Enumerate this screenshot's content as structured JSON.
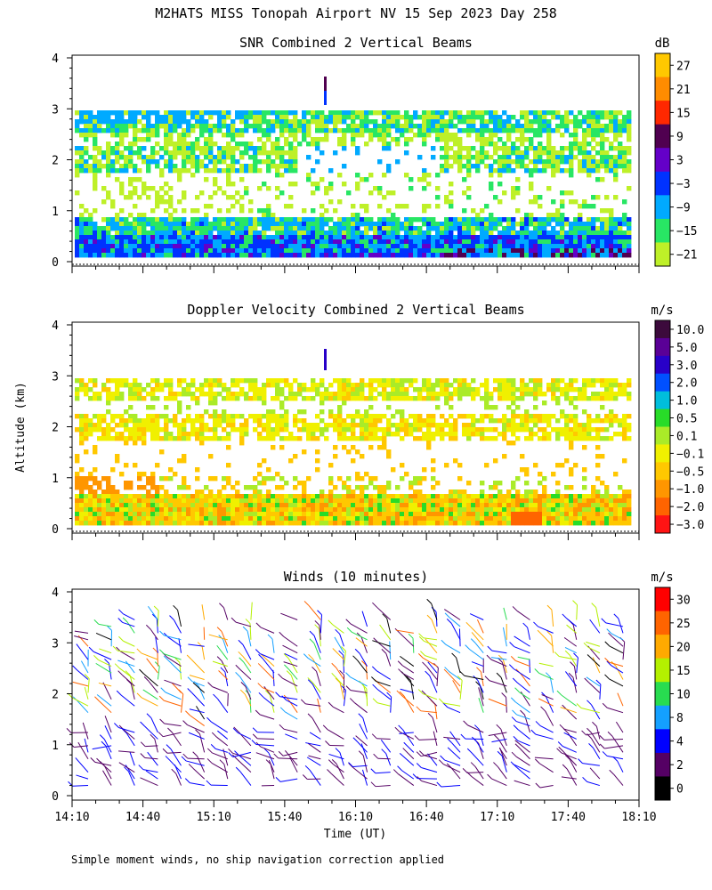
{
  "title": "M2HATS MISS Tonopah Airport NV  15 Sep 2023 Day 258",
  "ylabel": "Altitude (km)",
  "xlabel": "Time (UT)",
  "footnote": "Simple moment winds, no ship navigation correction applied",
  "chart_data": [
    {
      "type": "heatmap",
      "title": "SNR Combined 2 Vertical Beams",
      "units": "dB",
      "ylim": [
        0,
        4
      ],
      "yticks": [
        0,
        1,
        2,
        3,
        4
      ],
      "colorbar": {
        "labels": [
          "27",
          "21",
          "15",
          "9",
          "3",
          "−3",
          "−9",
          "−15",
          "−21"
        ],
        "colors": [
          "#FFC800",
          "#FF8C00",
          "#FF2800",
          "#500050",
          "#6400C8",
          "#0032FF",
          "#00AAFF",
          "#28E664",
          "#BEF028"
        ]
      },
      "layers": [
        {
          "range_km": [
            0.05,
            0.9
          ],
          "dominant": "-3 to 3 dB"
        },
        {
          "range_km": [
            1.8,
            2.3
          ],
          "dominant": "-15 to -9 dB"
        },
        {
          "range_km": [
            2.6,
            3.0
          ],
          "dominant": "-15 to -9 dB"
        }
      ]
    },
    {
      "type": "heatmap",
      "title": "Doppler Velocity Combined 2 Vertical Beams",
      "units": "m/s",
      "ylim": [
        0,
        4
      ],
      "yticks": [
        0,
        1,
        2,
        3,
        4
      ],
      "colorbar": {
        "labels": [
          "10.0",
          "5.0",
          "3.0",
          "2.0",
          "1.0",
          "0.5",
          "0.1",
          "−0.1",
          "−0.5",
          "−1.0",
          "−2.0",
          "−3.0"
        ],
        "colors": [
          "#3C0A3C",
          "#5A0096",
          "#2800C8",
          "#0050FF",
          "#00BEDC",
          "#28DC28",
          "#AAEB28",
          "#F0F000",
          "#FFC800",
          "#FF9600",
          "#FF6400",
          "#FF1414"
        ]
      },
      "layers": [
        {
          "range_km": [
            0.05,
            1.0
          ],
          "dominant": "-0.5 to -1.0 m/s"
        },
        {
          "range_km": [
            1.8,
            2.3
          ],
          "dominant": "-0.1 to 0.5 m/s"
        },
        {
          "range_km": [
            2.6,
            3.0
          ],
          "dominant": "0.1 to -0.1 m/s"
        }
      ]
    },
    {
      "type": "scatter",
      "title": "Winds (10 minutes)",
      "units": "m/s",
      "ylim": [
        0,
        4
      ],
      "yticks": [
        0,
        1,
        2,
        3,
        4
      ],
      "xlim_minutes": [
        0,
        240
      ],
      "x": [
        "14:10",
        "14:40",
        "15:10",
        "15:40",
        "16:10",
        "16:40",
        "17:10",
        "17:40",
        "18:10"
      ],
      "colorbar": {
        "labels": [
          "30",
          "25",
          "20",
          "15",
          "10",
          "8",
          "4",
          "2",
          "0"
        ],
        "colors": [
          "#FF0000",
          "#FF6400",
          "#FFAA00",
          "#B4F000",
          "#28DC50",
          "#14A0FF",
          "#0000FF",
          "#550064",
          "#000000"
        ]
      },
      "profile_count": 24
    }
  ]
}
